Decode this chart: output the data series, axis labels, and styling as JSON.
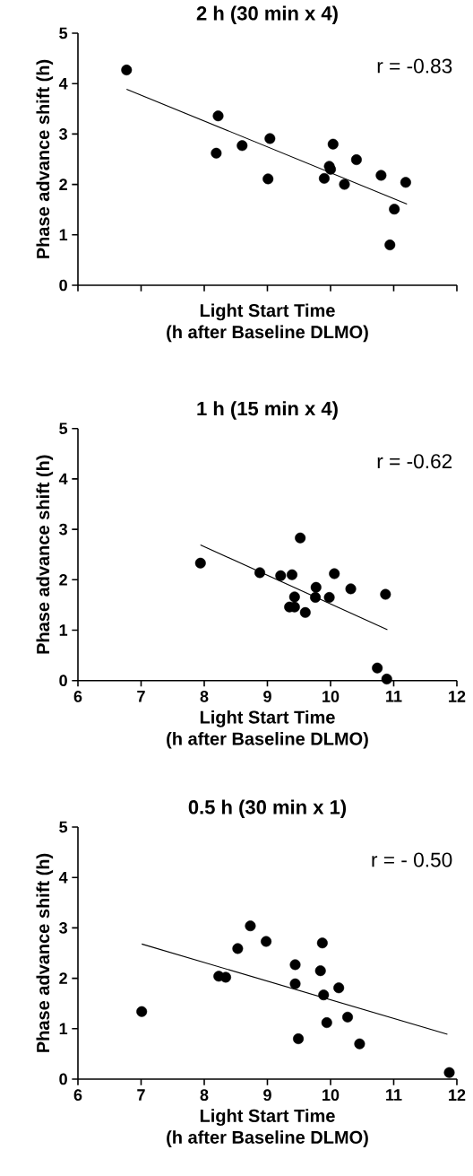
{
  "chart_data": [
    {
      "type": "scatter",
      "title": "2 h (30 min x 4)",
      "xlabel": "Light Start Time (h after Baseline DLMO)",
      "ylabel": "Phase advance shift (h)",
      "annotations": [
        "r = -0.83"
      ],
      "xlim": [
        6,
        12
      ],
      "ylim": [
        0,
        5
      ],
      "xticks": [
        6,
        7,
        8,
        9,
        10,
        11,
        12
      ],
      "yticks": [
        0,
        1,
        2,
        3,
        4,
        5
      ],
      "tick_labels": "y",
      "series": [
        {
          "type": "scatter",
          "marker": "circle",
          "color": "#000000",
          "x": [
            6.77,
            8.22,
            8.19,
            8.6,
            9.04,
            9.01,
            9.9,
            9.98,
            10.0,
            10.04,
            10.22,
            10.41,
            10.8,
            11.19,
            11.01,
            10.94
          ],
          "values": [
            4.27,
            3.36,
            2.62,
            2.77,
            2.91,
            2.11,
            2.12,
            2.36,
            2.3,
            2.8,
            2.0,
            2.49,
            2.18,
            2.04,
            1.51,
            0.8
          ]
        },
        {
          "type": "line",
          "marker": "none",
          "color": "#000000",
          "x": [
            6.77,
            11.21
          ],
          "values": [
            3.89,
            1.61
          ]
        }
      ]
    },
    {
      "type": "scatter",
      "title": "1 h (15 min x 4)",
      "xlabel": "Light Start Time (h after Baseline DLMO)",
      "ylabel": "Phase advance shift (h)",
      "annotations": [
        "r = -0.62"
      ],
      "xlim": [
        6,
        12
      ],
      "ylim": [
        0,
        5
      ],
      "xticks": [
        6,
        7,
        8,
        9,
        10,
        11,
        12
      ],
      "yticks": [
        0,
        1,
        2,
        3,
        4,
        5
      ],
      "series": [
        {
          "type": "scatter",
          "marker": "circle",
          "color": "#000000",
          "x": [
            7.94,
            8.88,
            9.21,
            9.39,
            9.52,
            9.43,
            9.35,
            9.43,
            9.6,
            9.77,
            9.76,
            9.98,
            10.06,
            10.32,
            10.87,
            10.74,
            10.89
          ],
          "values": [
            2.33,
            2.14,
            2.08,
            2.1,
            2.83,
            1.66,
            1.46,
            1.46,
            1.35,
            1.85,
            1.65,
            1.65,
            2.12,
            1.82,
            1.71,
            0.25,
            0.03
          ]
        },
        {
          "type": "line",
          "marker": "none",
          "color": "#000000",
          "x": [
            7.94,
            10.9
          ],
          "values": [
            2.69,
            1.01
          ]
        }
      ]
    },
    {
      "type": "scatter",
      "title": "0.5 h (30 min x 1)",
      "xlabel": "Light Start Time (h after Baseline DLMO)",
      "ylabel": "Phase advance shift (h)",
      "annotations": [
        "r = - 0.50"
      ],
      "xlim": [
        6,
        12
      ],
      "ylim": [
        0,
        5
      ],
      "xticks": [
        6,
        7,
        8,
        9,
        10,
        11,
        12
      ],
      "yticks": [
        0,
        1,
        2,
        3,
        4,
        5
      ],
      "series": [
        {
          "type": "scatter",
          "marker": "circle",
          "color": "#000000",
          "x": [
            7.01,
            8.23,
            8.34,
            8.53,
            8.73,
            8.98,
            9.44,
            9.44,
            9.49,
            9.84,
            9.87,
            9.89,
            9.94,
            10.13,
            10.27,
            10.46,
            11.88
          ],
          "values": [
            1.34,
            2.04,
            2.02,
            2.59,
            3.04,
            2.73,
            2.27,
            1.89,
            0.8,
            2.15,
            2.7,
            1.67,
            1.12,
            1.81,
            1.23,
            0.7,
            0.13
          ]
        },
        {
          "type": "line",
          "marker": "none",
          "color": "#000000",
          "x": [
            7.01,
            11.85
          ],
          "values": [
            2.68,
            0.89
          ]
        }
      ]
    }
  ]
}
